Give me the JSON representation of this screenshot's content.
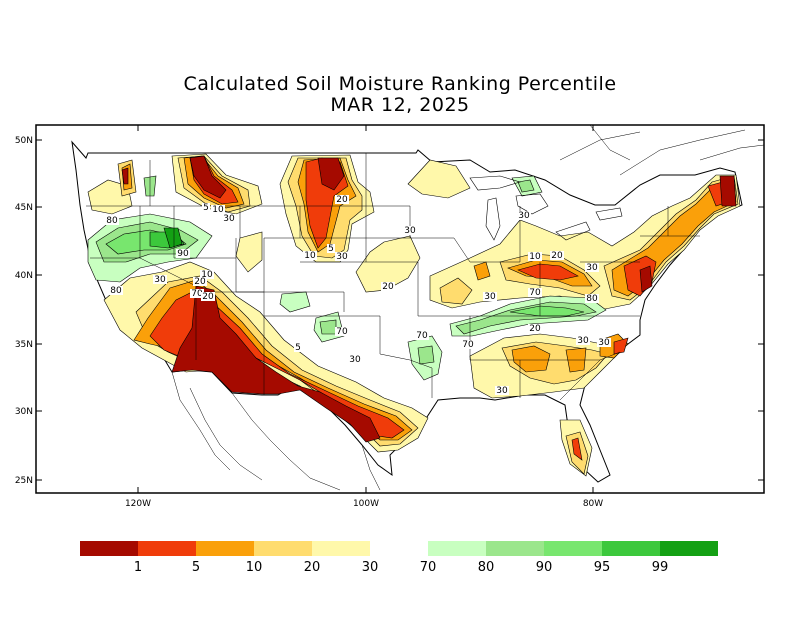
{
  "title": "Calculated Soil Moisture Ranking Percentile",
  "date": "MAR 12, 2025",
  "axes": {
    "lat_labels": [
      "50N",
      "45N",
      "40N",
      "35N",
      "30N",
      "25N"
    ],
    "lon_labels": [
      "120W",
      "100W",
      "80W"
    ]
  },
  "contour_labels": [
    "5",
    "10",
    "30",
    "20",
    "10",
    "5",
    "30",
    "30",
    "80",
    "90",
    "80",
    "30",
    "70",
    "20",
    "10",
    "10",
    "20",
    "30",
    "30",
    "70",
    "80",
    "20",
    "30",
    "30",
    "30",
    "70",
    "70",
    "70",
    "5",
    "30",
    "20",
    "30",
    "20"
  ],
  "legend": {
    "colors": [
      "#a50a00",
      "#f03c0a",
      "#faa00a",
      "#ffdc6e",
      "#fff8aa",
      "#ffffff",
      "#c8ffc0",
      "#9be68c",
      "#78e66e",
      "#3cc83c",
      "#14a014"
    ],
    "tick_labels": [
      "1",
      "5",
      "10",
      "20",
      "30",
      "70",
      "80",
      "90",
      "95",
      "99"
    ]
  }
}
